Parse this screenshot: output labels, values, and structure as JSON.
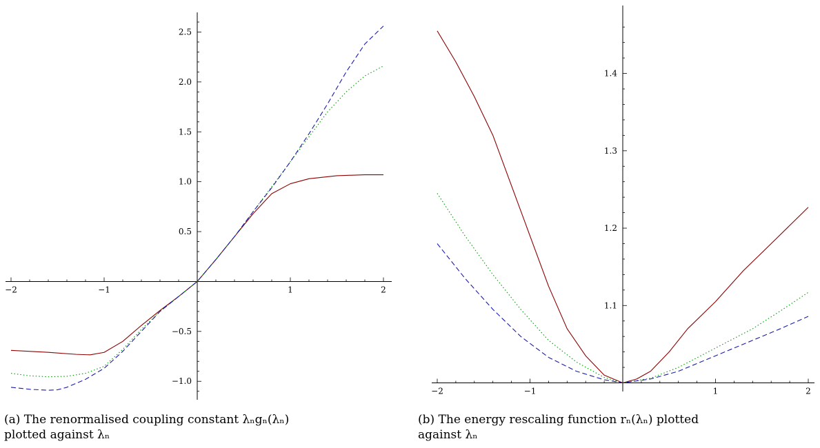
{
  "chart_data": [
    {
      "type": "line",
      "caption_line1": "(a) The renormalised coupling constant λₙgₙ(λₙ)",
      "caption_line2": "plotted against λₙ",
      "title": "",
      "xlabel": "",
      "ylabel": "",
      "xlim": [
        -2,
        2
      ],
      "ylim": [
        -1.1,
        2.6
      ],
      "xticks": [
        -2,
        -1,
        1,
        2
      ],
      "xtick_labels": [
        "−2",
        "−1",
        "1",
        "2"
      ],
      "yticks": [
        -1.0,
        -0.5,
        0.5,
        1.0,
        1.5,
        2.0,
        2.5
      ],
      "ytick_labels": [
        "−1.0",
        "−0.5",
        "0.5",
        "1.0",
        "1.5",
        "2.0",
        "2.5"
      ],
      "grid": false,
      "series": [
        {
          "color": "#8b0000",
          "style": "solid",
          "x": [
            -2,
            -1.6,
            -1.3,
            -1.15,
            -1.0,
            -0.8,
            -0.6,
            -0.4,
            -0.2,
            0,
            0.2,
            0.4,
            0.6,
            0.8,
            1.0,
            1.2,
            1.5,
            1.8,
            2.0
          ],
          "y": [
            -0.69,
            -0.71,
            -0.73,
            -0.735,
            -0.71,
            -0.6,
            -0.44,
            -0.29,
            -0.15,
            0,
            0.22,
            0.45,
            0.68,
            0.88,
            0.98,
            1.03,
            1.06,
            1.07,
            1.07
          ]
        },
        {
          "color": "#009900",
          "style": "dotted",
          "x": [
            -2,
            -1.8,
            -1.6,
            -1.4,
            -1.2,
            -1.0,
            -0.8,
            -0.6,
            -0.4,
            -0.2,
            0,
            0.2,
            0.4,
            0.6,
            0.8,
            1.0,
            1.2,
            1.4,
            1.6,
            1.8,
            2.0
          ],
          "y": [
            -0.92,
            -0.945,
            -0.955,
            -0.95,
            -0.92,
            -0.85,
            -0.68,
            -0.48,
            -0.3,
            -0.15,
            0,
            0.22,
            0.45,
            0.7,
            0.95,
            1.2,
            1.45,
            1.7,
            1.9,
            2.06,
            2.16
          ]
        },
        {
          "color": "#1a1aaa",
          "style": "dashed",
          "x": [
            -2,
            -1.8,
            -1.6,
            -1.5,
            -1.4,
            -1.2,
            -1.0,
            -0.8,
            -0.6,
            -0.4,
            -0.2,
            0,
            0.2,
            0.4,
            0.6,
            0.8,
            1.0,
            1.2,
            1.4,
            1.6,
            1.8,
            2.0
          ],
          "y": [
            -1.06,
            -1.08,
            -1.09,
            -1.085,
            -1.06,
            -0.98,
            -0.87,
            -0.7,
            -0.5,
            -0.3,
            -0.15,
            0,
            0.22,
            0.45,
            0.7,
            0.94,
            1.2,
            1.48,
            1.78,
            2.1,
            2.38,
            2.56
          ]
        }
      ]
    },
    {
      "type": "line",
      "caption_line1": "(b) The energy rescaling function rₙ(λₙ) plotted",
      "caption_line2": "against λₙ",
      "title": "",
      "xlabel": "",
      "ylabel": "",
      "xlim": [
        -2,
        2
      ],
      "ylim": [
        1.0,
        1.47
      ],
      "xticks": [
        -2,
        -1,
        1,
        2
      ],
      "xtick_labels": [
        "−2",
        "−1",
        "1",
        "2"
      ],
      "yticks": [
        1.1,
        1.2,
        1.3,
        1.4
      ],
      "ytick_labels": [
        "1.1",
        "1.2",
        "1.3",
        "1.4"
      ],
      "grid": false,
      "series": [
        {
          "color": "#8b0000",
          "style": "solid",
          "x": [
            -2,
            -1.8,
            -1.6,
            -1.4,
            -1.2,
            -1.0,
            -0.8,
            -0.6,
            -0.4,
            -0.2,
            0,
            0.15,
            0.3,
            0.5,
            0.7,
            1.0,
            1.3,
            1.6,
            2.0
          ],
          "y": [
            1.455,
            1.415,
            1.37,
            1.32,
            1.255,
            1.19,
            1.125,
            1.07,
            1.035,
            1.01,
            1.0,
            1.005,
            1.015,
            1.04,
            1.07,
            1.105,
            1.145,
            1.18,
            1.227
          ]
        },
        {
          "color": "#009900",
          "style": "dotted",
          "x": [
            -2,
            -1.7,
            -1.4,
            -1.1,
            -0.8,
            -0.5,
            -0.2,
            0,
            0.3,
            0.6,
            1.0,
            1.4,
            1.7,
            2.0
          ],
          "y": [
            1.245,
            1.19,
            1.14,
            1.095,
            1.055,
            1.027,
            1.007,
            1.0,
            1.006,
            1.02,
            1.045,
            1.07,
            1.093,
            1.117
          ]
        },
        {
          "color": "#1a1aaa",
          "style": "dashed",
          "x": [
            -2,
            -1.7,
            -1.4,
            -1.1,
            -0.8,
            -0.5,
            -0.2,
            0,
            0.3,
            0.6,
            1.0,
            1.4,
            1.7,
            2.0
          ],
          "y": [
            1.18,
            1.135,
            1.095,
            1.06,
            1.033,
            1.015,
            1.004,
            1.0,
            1.005,
            1.015,
            1.035,
            1.055,
            1.07,
            1.086
          ]
        }
      ]
    }
  ]
}
